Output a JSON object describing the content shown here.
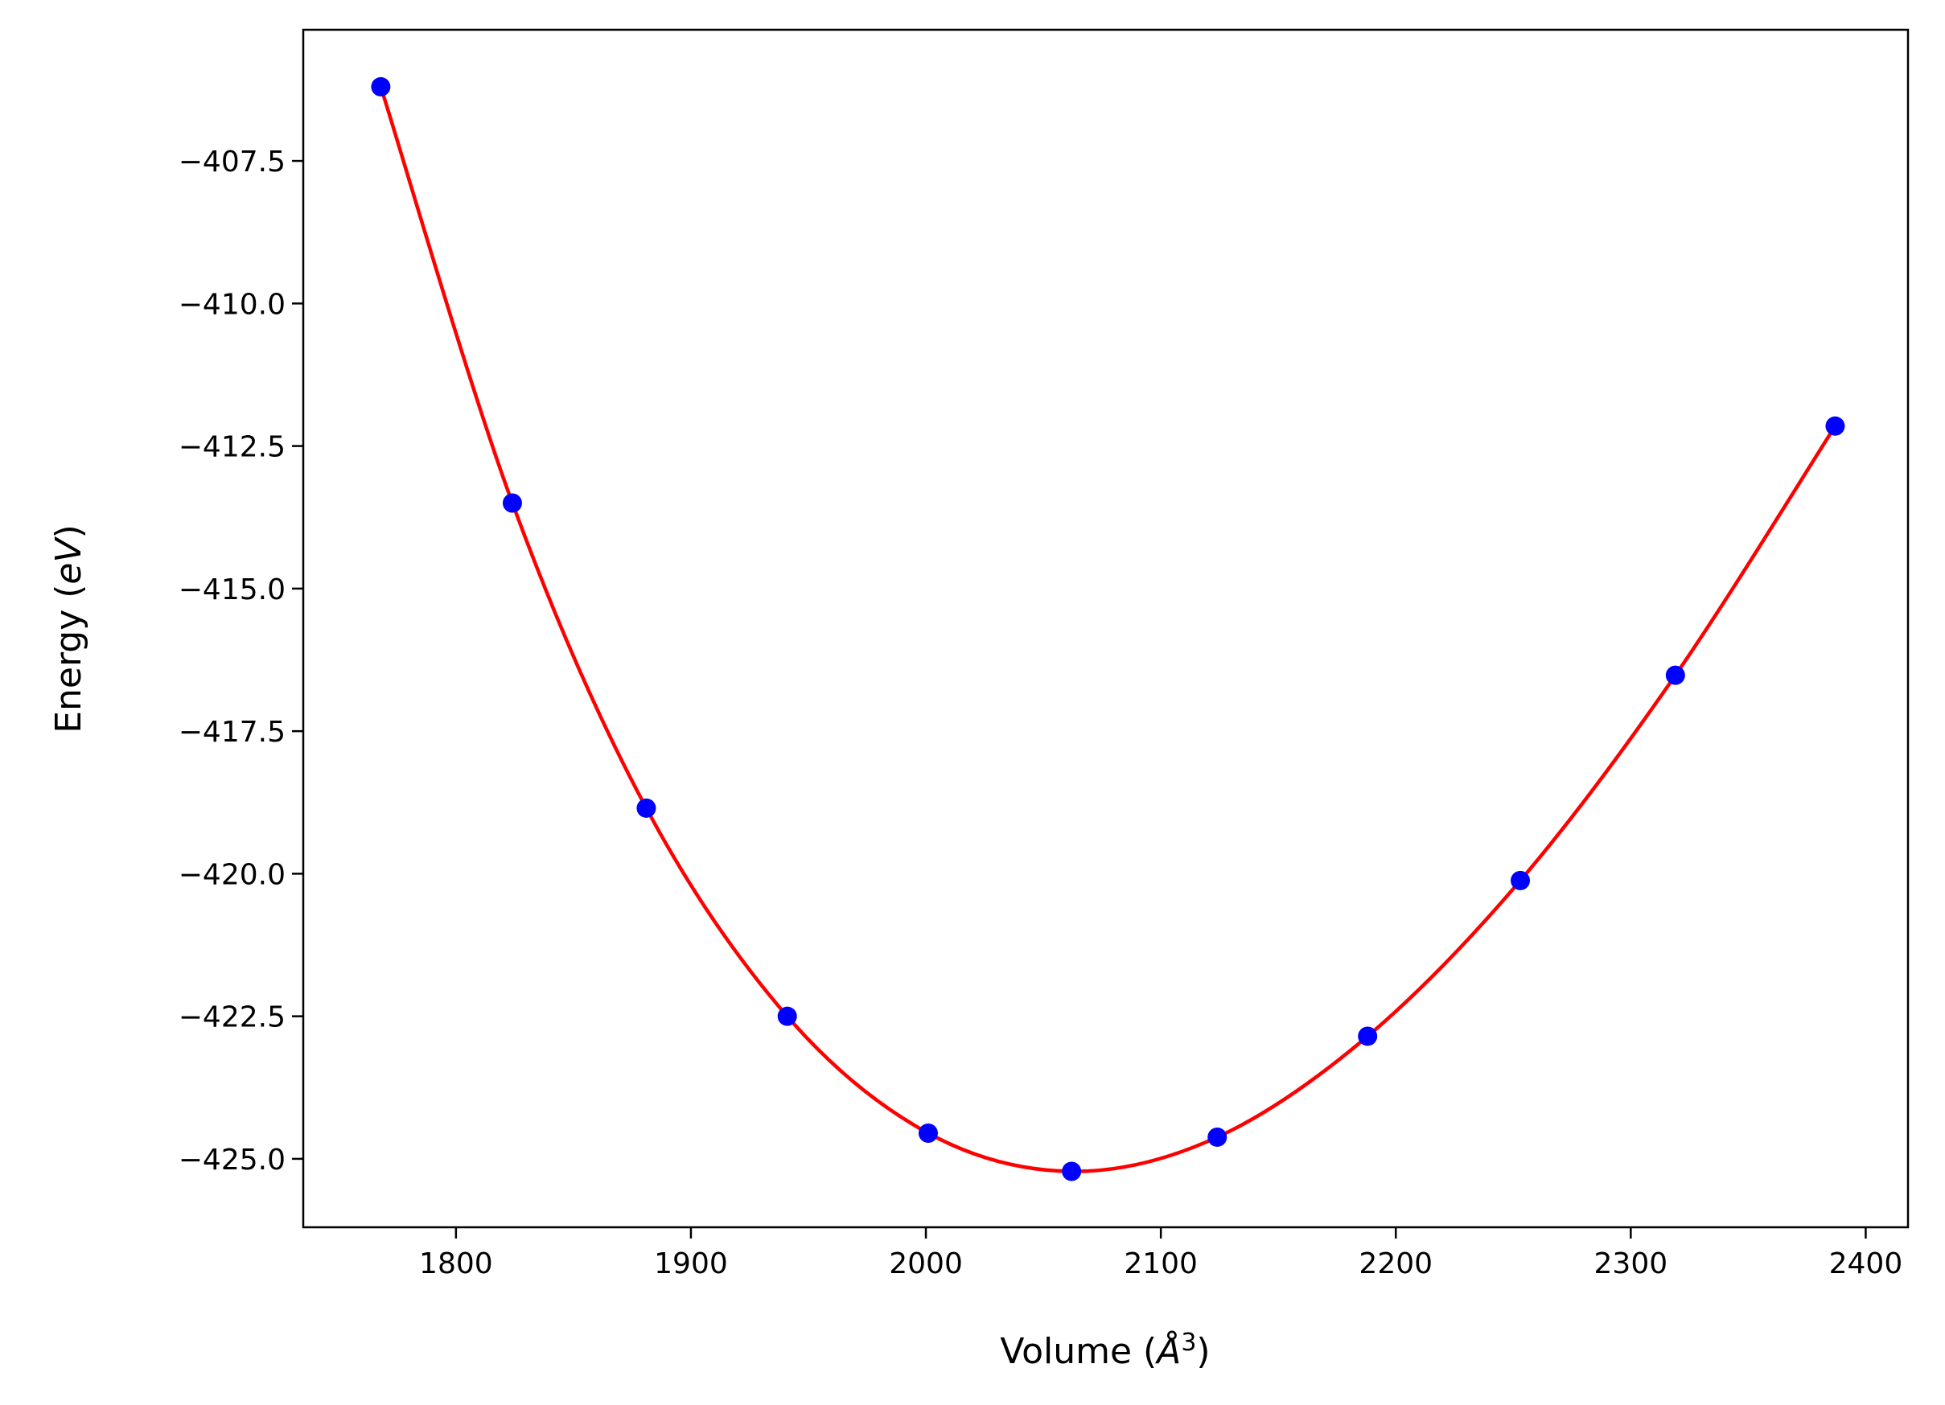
{
  "chart_data": {
    "type": "scatter",
    "title": "",
    "xlabel": {
      "prefix": "Volume (",
      "symbol": "Å",
      "exp": "3",
      "suffix": ")"
    },
    "ylabel": {
      "prefix": "Energy (",
      "italic": "eV",
      "suffix": ")"
    },
    "xlim": [
      1735,
      2418
    ],
    "ylim": [
      -426.2,
      -405.2
    ],
    "xticks": [
      1800,
      1900,
      2000,
      2100,
      2200,
      2300,
      2400
    ],
    "xtick_labels": [
      "1800",
      "1900",
      "2000",
      "2100",
      "2200",
      "2300",
      "2400"
    ],
    "yticks": [
      -407.5,
      -410.0,
      -412.5,
      -415.0,
      -417.5,
      -420.0,
      -422.5,
      -425.0
    ],
    "ytick_labels": [
      "−407.5",
      "−410.0",
      "−412.5",
      "−415.0",
      "−417.5",
      "−420.0",
      "−422.5",
      "−425.0"
    ],
    "grid": false,
    "series": [
      {
        "kind": "points",
        "color": "#0000ff",
        "x": [
          1768,
          1824,
          1881,
          1941,
          2001,
          2062,
          2124,
          2188,
          2253,
          2319,
          2387
        ],
        "y": [
          -406.2,
          -413.5,
          -418.85,
          -422.5,
          -424.55,
          -425.22,
          -424.62,
          -422.85,
          -420.12,
          -416.52,
          -412.15
        ]
      },
      {
        "kind": "fit-curve",
        "color": "#ff0000",
        "x": [
          1768,
          1824,
          1881,
          1941,
          2001,
          2062,
          2124,
          2188,
          2253,
          2319,
          2387
        ],
        "y": [
          -406.2,
          -413.5,
          -418.85,
          -422.5,
          -424.55,
          -425.22,
          -424.62,
          -422.85,
          -420.12,
          -416.52,
          -412.15
        ]
      }
    ]
  }
}
